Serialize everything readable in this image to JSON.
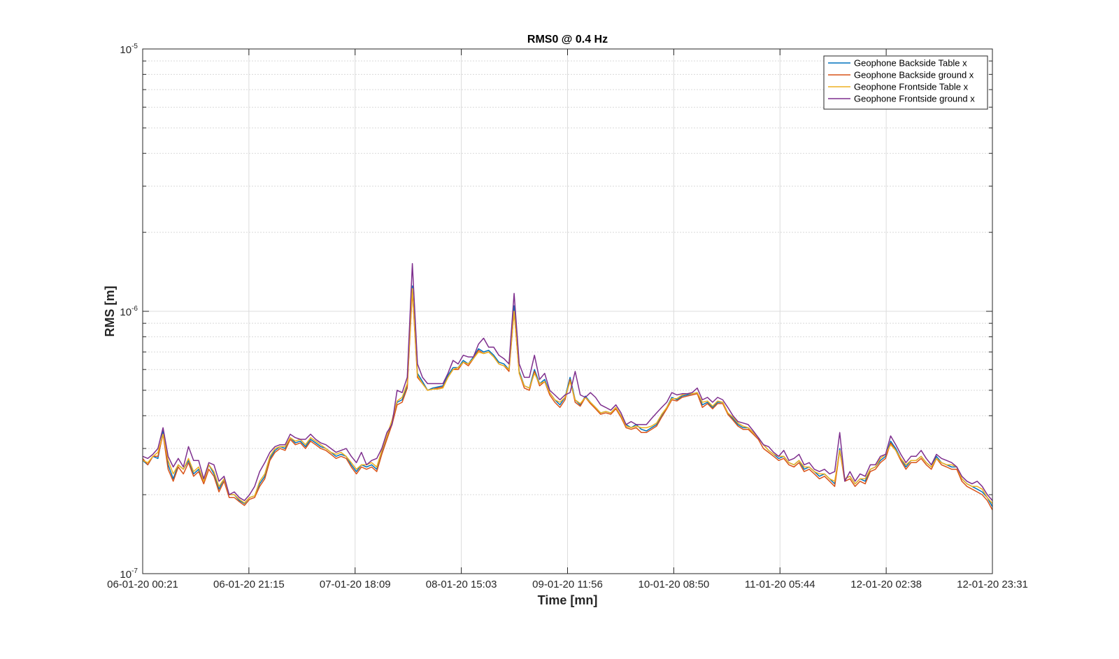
{
  "chart_data": {
    "type": "line",
    "title": "RMS0 @ 0.4 Hz",
    "xlabel": "Time [mn]",
    "ylabel": "RMS [m]",
    "yscale": "log",
    "ylim": [
      1e-07,
      1e-05
    ],
    "y_ticks": [
      {
        "base": "10",
        "exp": "-5",
        "value": 1e-05
      },
      {
        "base": "10",
        "exp": "-6",
        "value": 1e-06
      },
      {
        "base": "10",
        "exp": "-7",
        "value": 1e-07
      }
    ],
    "x_tick_labels": [
      "06-01-20 00:21",
      "06-01-20 21:15",
      "07-01-20 18:09",
      "08-01-20 15:03",
      "09-01-20 11:56",
      "10-01-20 08:50",
      "11-01-20 05:44",
      "12-01-20 02:38",
      "12-01-20 23:31"
    ],
    "grid": true,
    "legend_position": "top-right",
    "series": [
      {
        "name": "Geophone Backside Table x",
        "color": "#0072BD",
        "values": [
          2.7e-07,
          2.6e-07,
          2.8e-07,
          2.75e-07,
          3.5e-07,
          2.6e-07,
          2.3e-07,
          2.6e-07,
          2.5e-07,
          2.7e-07,
          2.4e-07,
          2.5e-07,
          2.25e-07,
          2.6e-07,
          2.4e-07,
          2.1e-07,
          2.3e-07,
          2e-07,
          2e-07,
          1.9e-07,
          1.85e-07,
          1.95e-07,
          1.98e-07,
          2.2e-07,
          2.35e-07,
          2.75e-07,
          2.95e-07,
          3.05e-07,
          3e-07,
          3.3e-07,
          3.15e-07,
          3.2e-07,
          3.05e-07,
          3.25e-07,
          3.15e-07,
          3.05e-07,
          3e-07,
          2.9e-07,
          2.8e-07,
          2.85e-07,
          2.8e-07,
          2.6e-07,
          2.45e-07,
          2.6e-07,
          2.55e-07,
          2.6e-07,
          2.5e-07,
          2.9e-07,
          3.3e-07,
          3.8e-07,
          4.5e-07,
          4.6e-07,
          5.2e-07,
          1.25e-06,
          5.8e-07,
          5.4e-07,
          5e-07,
          5.1e-07,
          5.15e-07,
          5.2e-07,
          5.7e-07,
          6.1e-07,
          6.1e-07,
          6.5e-07,
          6.3e-07,
          6.7e-07,
          7.2e-07,
          7e-07,
          7.1e-07,
          6.8e-07,
          6.4e-07,
          6.3e-07,
          6e-07,
          1.05e-06,
          5.9e-07,
          5.2e-07,
          5.1e-07,
          6e-07,
          5.3e-07,
          5.5e-07,
          4.9e-07,
          4.6e-07,
          4.4e-07,
          4.7e-07,
          5.6e-07,
          4.6e-07,
          4.4e-07,
          4.75e-07,
          4.5e-07,
          4.3e-07,
          4.1e-07,
          4.15e-07,
          4.1e-07,
          4.3e-07,
          4e-07,
          3.7e-07,
          3.6e-07,
          3.7e-07,
          3.55e-07,
          3.5e-07,
          3.6e-07,
          3.7e-07,
          4e-07,
          4.3e-07,
          4.7e-07,
          4.6e-07,
          4.75e-07,
          4.8e-07,
          4.85e-07,
          4.9e-07,
          4.4e-07,
          4.5e-07,
          4.3e-07,
          4.5e-07,
          4.5e-07,
          4.1e-07,
          3.9e-07,
          3.7e-07,
          3.6e-07,
          3.6e-07,
          3.45e-07,
          3.3e-07,
          3.1e-07,
          2.95e-07,
          2.85e-07,
          2.75e-07,
          2.8e-07,
          2.65e-07,
          2.6e-07,
          2.7e-07,
          2.5e-07,
          2.55e-07,
          2.45e-07,
          2.35e-07,
          2.4e-07,
          2.3e-07,
          2.2e-07,
          3e-07,
          2.3e-07,
          2.35e-07,
          2.2e-07,
          2.3e-07,
          2.25e-07,
          2.5e-07,
          2.55e-07,
          2.7e-07,
          2.8e-07,
          3.2e-07,
          3e-07,
          2.75e-07,
          2.55e-07,
          2.7e-07,
          2.7e-07,
          2.8e-07,
          2.65e-07,
          2.55e-07,
          2.8e-07,
          2.65e-07,
          2.6e-07,
          2.55e-07,
          2.55e-07,
          2.3e-07,
          2.2e-07,
          2.15e-07,
          2.1e-07,
          2.05e-07,
          1.95e-07,
          1.8e-07
        ]
      },
      {
        "name": "Geophone Backside ground x",
        "color": "#D95319",
        "values": [
          2.75e-07,
          2.6e-07,
          2.8e-07,
          2.8e-07,
          3.4e-07,
          2.5e-07,
          2.25e-07,
          2.55e-07,
          2.4e-07,
          2.65e-07,
          2.35e-07,
          2.45e-07,
          2.2e-07,
          2.5e-07,
          2.35e-07,
          2.05e-07,
          2.25e-07,
          1.95e-07,
          1.95e-07,
          1.88e-07,
          1.82e-07,
          1.92e-07,
          1.95e-07,
          2.15e-07,
          2.3e-07,
          2.7e-07,
          2.9e-07,
          3e-07,
          2.95e-07,
          3.25e-07,
          3.1e-07,
          3.15e-07,
          3e-07,
          3.2e-07,
          3.1e-07,
          3e-07,
          2.95e-07,
          2.85e-07,
          2.75e-07,
          2.8e-07,
          2.75e-07,
          2.55e-07,
          2.4e-07,
          2.55e-07,
          2.5e-07,
          2.55e-07,
          2.45e-07,
          2.85e-07,
          3.25e-07,
          3.7e-07,
          4.4e-07,
          4.5e-07,
          5.1e-07,
          1.2e-06,
          5.6e-07,
          5.3e-07,
          5e-07,
          5.05e-07,
          5.1e-07,
          5.15e-07,
          5.6e-07,
          6e-07,
          6e-07,
          6.4e-07,
          6.2e-07,
          6.6e-07,
          7.1e-07,
          6.9e-07,
          7e-07,
          6.7e-07,
          6.3e-07,
          6.2e-07,
          5.9e-07,
          1e-06,
          5.8e-07,
          5.1e-07,
          5e-07,
          5.9e-07,
          5.2e-07,
          5.4e-07,
          4.8e-07,
          4.5e-07,
          4.3e-07,
          4.6e-07,
          5.5e-07,
          4.5e-07,
          4.35e-07,
          4.7e-07,
          4.45e-07,
          4.25e-07,
          4.05e-07,
          4.1e-07,
          4.05e-07,
          4.25e-07,
          3.95e-07,
          3.6e-07,
          3.55e-07,
          3.6e-07,
          3.45e-07,
          3.45e-07,
          3.55e-07,
          3.65e-07,
          3.95e-07,
          4.25e-07,
          4.6e-07,
          4.55e-07,
          4.7e-07,
          4.75e-07,
          4.8e-07,
          4.85e-07,
          4.3e-07,
          4.45e-07,
          4.25e-07,
          4.45e-07,
          4.45e-07,
          4.05e-07,
          3.85e-07,
          3.65e-07,
          3.55e-07,
          3.55e-07,
          3.4e-07,
          3.25e-07,
          3e-07,
          2.9e-07,
          2.8e-07,
          2.7e-07,
          2.75e-07,
          2.6e-07,
          2.55e-07,
          2.65e-07,
          2.45e-07,
          2.5e-07,
          2.4e-07,
          2.3e-07,
          2.35e-07,
          2.25e-07,
          2.15e-07,
          2.95e-07,
          2.25e-07,
          2.3e-07,
          2.15e-07,
          2.25e-07,
          2.2e-07,
          2.45e-07,
          2.5e-07,
          2.65e-07,
          2.75e-07,
          3.15e-07,
          2.95e-07,
          2.7e-07,
          2.5e-07,
          2.65e-07,
          2.65e-07,
          2.75e-07,
          2.6e-07,
          2.5e-07,
          2.75e-07,
          2.6e-07,
          2.55e-07,
          2.5e-07,
          2.5e-07,
          2.25e-07,
          2.15e-07,
          2.1e-07,
          2.05e-07,
          2e-07,
          1.9e-07,
          1.75e-07
        ]
      },
      {
        "name": "Geophone Frontside Table x",
        "color": "#EDB120",
        "values": [
          2.7e-07,
          2.65e-07,
          2.8e-07,
          2.9e-07,
          3.4e-07,
          2.7e-07,
          2.4e-07,
          2.6e-07,
          2.5e-07,
          2.75e-07,
          2.45e-07,
          2.55e-07,
          2.25e-07,
          2.6e-07,
          2.45e-07,
          2.15e-07,
          2.3e-07,
          2e-07,
          2e-07,
          1.92e-07,
          1.86e-07,
          1.95e-07,
          1.98e-07,
          2.25e-07,
          2.4e-07,
          2.8e-07,
          3e-07,
          3.05e-07,
          3.05e-07,
          3.3e-07,
          3.2e-07,
          3.25e-07,
          3.1e-07,
          3.3e-07,
          3.2e-07,
          3.1e-07,
          3e-07,
          2.9e-07,
          2.85e-07,
          2.9e-07,
          2.8e-07,
          2.65e-07,
          2.5e-07,
          2.6e-07,
          2.6e-07,
          2.65e-07,
          2.55e-07,
          2.95e-07,
          3.35e-07,
          3.85e-07,
          4.55e-07,
          4.7e-07,
          5.3e-07,
          1.22e-06,
          5.7e-07,
          5.3e-07,
          5e-07,
          5.05e-07,
          5.05e-07,
          5.1e-07,
          5.6e-07,
          6e-07,
          6.1e-07,
          6.4e-07,
          6.3e-07,
          6.6e-07,
          7e-07,
          6.9e-07,
          7e-07,
          6.7e-07,
          6.3e-07,
          6.2e-07,
          6e-07,
          1e-06,
          5.8e-07,
          5.2e-07,
          5.1e-07,
          5.8e-07,
          5.3e-07,
          5.4e-07,
          4.9e-07,
          4.6e-07,
          4.5e-07,
          4.7e-07,
          5.4e-07,
          4.6e-07,
          4.45e-07,
          4.7e-07,
          4.5e-07,
          4.3e-07,
          4.1e-07,
          4.15e-07,
          4.1e-07,
          4.3e-07,
          4e-07,
          3.65e-07,
          3.6e-07,
          3.65e-07,
          3.6e-07,
          3.6e-07,
          3.65e-07,
          3.75e-07,
          4.05e-07,
          4.3e-07,
          4.65e-07,
          4.65e-07,
          4.8e-07,
          4.85e-07,
          4.85e-07,
          4.9e-07,
          4.5e-07,
          4.55e-07,
          4.35e-07,
          4.55e-07,
          4.5e-07,
          4.1e-07,
          3.95e-07,
          3.75e-07,
          3.65e-07,
          3.6e-07,
          3.45e-07,
          3.3e-07,
          3.1e-07,
          2.95e-07,
          2.85e-07,
          2.8e-07,
          2.8e-07,
          2.65e-07,
          2.6e-07,
          2.7e-07,
          2.55e-07,
          2.55e-07,
          2.45e-07,
          2.4e-07,
          2.4e-07,
          2.3e-07,
          2.25e-07,
          2.95e-07,
          2.3e-07,
          2.35e-07,
          2.2e-07,
          2.3e-07,
          2.3e-07,
          2.5e-07,
          2.55e-07,
          2.75e-07,
          2.85e-07,
          3.1e-07,
          2.95e-07,
          2.75e-07,
          2.6e-07,
          2.7e-07,
          2.7e-07,
          2.8e-07,
          2.65e-07,
          2.55e-07,
          2.75e-07,
          2.65e-07,
          2.6e-07,
          2.6e-07,
          2.55e-07,
          2.3e-07,
          2.2e-07,
          2.15e-07,
          2.15e-07,
          2.1e-07,
          1.95e-07,
          1.85e-07
        ]
      },
      {
        "name": "Geophone Frontside ground x",
        "color": "#7E2F8E",
        "values": [
          2.8e-07,
          2.75e-07,
          2.85e-07,
          3e-07,
          3.6e-07,
          2.8e-07,
          2.55e-07,
          2.75e-07,
          2.55e-07,
          3.05e-07,
          2.7e-07,
          2.7e-07,
          2.3e-07,
          2.65e-07,
          2.6e-07,
          2.25e-07,
          2.35e-07,
          2e-07,
          2.05e-07,
          1.95e-07,
          1.9e-07,
          2e-07,
          2.15e-07,
          2.45e-07,
          2.65e-07,
          2.9e-07,
          3.05e-07,
          3.1e-07,
          3.1e-07,
          3.4e-07,
          3.3e-07,
          3.25e-07,
          3.25e-07,
          3.4e-07,
          3.25e-07,
          3.15e-07,
          3.1e-07,
          3e-07,
          2.9e-07,
          2.95e-07,
          3e-07,
          2.8e-07,
          2.65e-07,
          2.9e-07,
          2.6e-07,
          2.7e-07,
          2.75e-07,
          3e-07,
          3.45e-07,
          3.7e-07,
          5e-07,
          4.9e-07,
          5.6e-07,
          1.52e-06,
          6.3e-07,
          5.6e-07,
          5.3e-07,
          5.3e-07,
          5.3e-07,
          5.3e-07,
          5.8e-07,
          6.5e-07,
          6.3e-07,
          6.8e-07,
          6.7e-07,
          6.7e-07,
          7.5e-07,
          7.9e-07,
          7.3e-07,
          7.3e-07,
          6.8e-07,
          6.6e-07,
          6.3e-07,
          1.17e-06,
          6.3e-07,
          5.6e-07,
          5.6e-07,
          6.8e-07,
          5.5e-07,
          5.8e-07,
          5e-07,
          4.8e-07,
          4.6e-07,
          4.8e-07,
          4.9e-07,
          5.9e-07,
          4.8e-07,
          4.7e-07,
          4.9e-07,
          4.7e-07,
          4.4e-07,
          4.3e-07,
          4.2e-07,
          4.4e-07,
          4.1e-07,
          3.7e-07,
          3.8e-07,
          3.7e-07,
          3.7e-07,
          3.7e-07,
          3.9e-07,
          4.1e-07,
          4.3e-07,
          4.5e-07,
          4.9e-07,
          4.8e-07,
          4.85e-07,
          4.85e-07,
          4.9e-07,
          5.1e-07,
          4.6e-07,
          4.7e-07,
          4.5e-07,
          4.7e-07,
          4.6e-07,
          4.3e-07,
          4e-07,
          3.8e-07,
          3.75e-07,
          3.7e-07,
          3.5e-07,
          3.3e-07,
          3.1e-07,
          3.05e-07,
          2.9e-07,
          2.8e-07,
          2.95e-07,
          2.7e-07,
          2.75e-07,
          2.85e-07,
          2.6e-07,
          2.65e-07,
          2.5e-07,
          2.45e-07,
          2.5e-07,
          2.4e-07,
          2.45e-07,
          3.45e-07,
          2.25e-07,
          2.45e-07,
          2.25e-07,
          2.4e-07,
          2.35e-07,
          2.6e-07,
          2.6e-07,
          2.8e-07,
          2.85e-07,
          3.35e-07,
          3.1e-07,
          2.85e-07,
          2.65e-07,
          2.8e-07,
          2.8e-07,
          2.95e-07,
          2.75e-07,
          2.6e-07,
          2.85e-07,
          2.75e-07,
          2.7e-07,
          2.65e-07,
          2.55e-07,
          2.35e-07,
          2.25e-07,
          2.2e-07,
          2.25e-07,
          2.15e-07,
          2e-07,
          1.9e-07
        ]
      }
    ]
  }
}
